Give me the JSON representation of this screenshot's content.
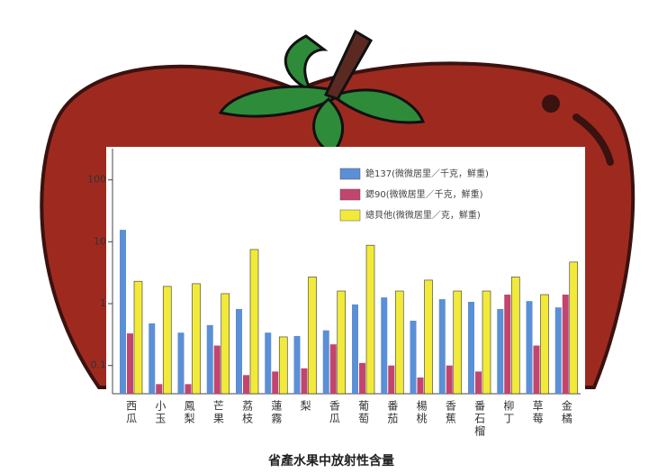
{
  "chart_data": {
    "type": "bar",
    "title": "省產水果中放射性含量",
    "categories": [
      "西瓜",
      "小玉",
      "鳳梨",
      "芒果",
      "荔枝",
      "蓮霧",
      "梨",
      "香瓜",
      "葡萄",
      "番茄",
      "楊桃",
      "香蕉",
      "番石榴",
      "柳丁",
      "草莓",
      "金橘"
    ],
    "series": [
      {
        "name": "銫137(微微居里／千克，鮮重)",
        "color": "#5b8fd6",
        "values": [
          15.6,
          0.48,
          0.34,
          0.45,
          0.82,
          0.34,
          0.3,
          0.37,
          0.97,
          1.26,
          0.53,
          1.18,
          1.07,
          0.82,
          1.1,
          0.87
        ]
      },
      {
        "name": "鍶90(微微居里／千克，鮮重)",
        "color": "#c2456e",
        "values": [
          0.33,
          0.05,
          0.05,
          0.21,
          0.07,
          0.08,
          0.09,
          0.22,
          0.11,
          0.1,
          0.064,
          0.1,
          0.08,
          1.4,
          0.21,
          1.4
        ]
      },
      {
        "name": "總貝他(微微居里／克，鮮重)",
        "color": "#f2ea3a",
        "values": [
          2.3,
          1.9,
          2.1,
          1.45,
          7.5,
          0.29,
          2.7,
          1.6,
          8.8,
          1.6,
          2.4,
          1.6,
          1.6,
          2.7,
          1.4,
          4.7
        ]
      }
    ],
    "log_scale": true,
    "ylim": [
      0.035,
      320
    ],
    "yticks": [
      100,
      10,
      1,
      0.1
    ]
  }
}
